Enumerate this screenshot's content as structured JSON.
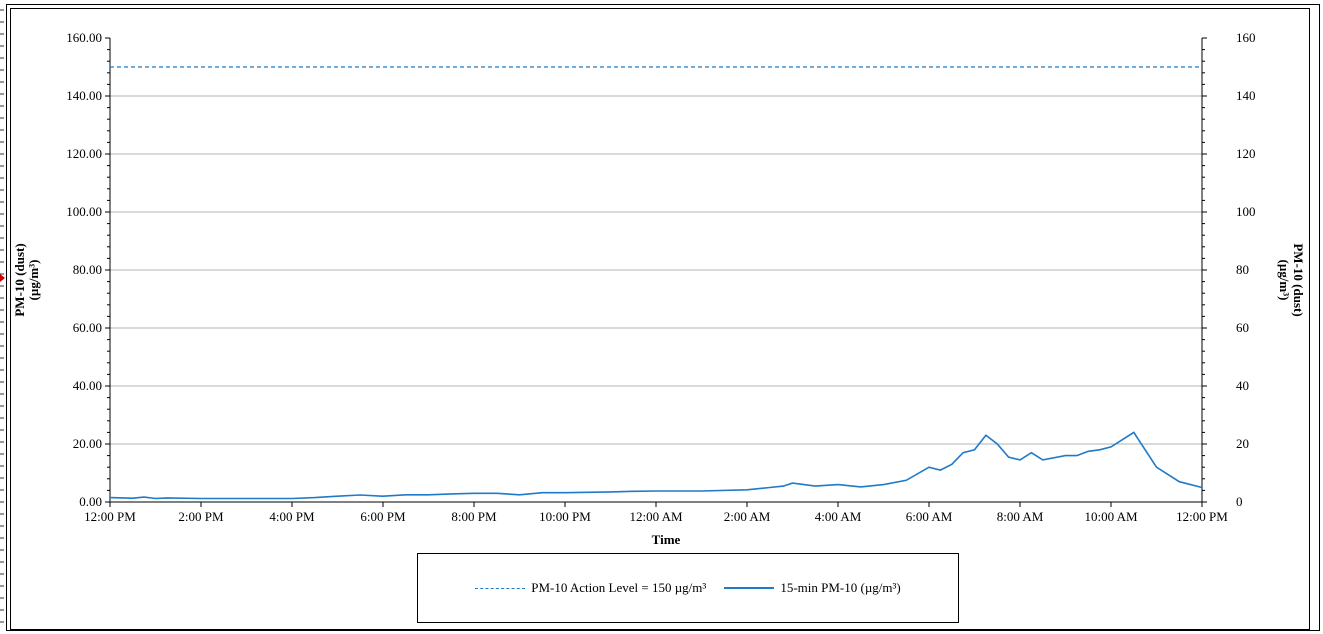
{
  "chart_data": {
    "type": "line",
    "xlabel": "Time",
    "ylabel_left": [
      "PM-10 (dust)",
      "(µg/m³)"
    ],
    "ylabel_right": [
      "PM-10 (dust)",
      "(µg/m³)"
    ],
    "x_ticks": [
      "12:00 PM",
      "2:00 PM",
      "4:00 PM",
      "6:00 PM",
      "8:00 PM",
      "10:00 PM",
      "12:00 AM",
      "2:00 AM",
      "4:00 AM",
      "6:00 AM",
      "8:00 AM",
      "10:00 AM",
      "12:00 PM"
    ],
    "x_range_hours": [
      0,
      24
    ],
    "y_left_ticks": [
      "0.00",
      "20.00",
      "40.00",
      "60.00",
      "80.00",
      "100.00",
      "120.00",
      "140.00",
      "160.00"
    ],
    "y_right_ticks": [
      "0",
      "20",
      "40",
      "60",
      "80",
      "100",
      "120",
      "140",
      "160"
    ],
    "ylim": [
      0,
      160
    ],
    "grid": "horizontal",
    "series": [
      {
        "name": "PM-10 Action Level = 150 µg/m³",
        "style": "dashed",
        "color": "#1f7ac8",
        "x": [
          0,
          24
        ],
        "values": [
          150,
          150
        ]
      },
      {
        "name": "15-min PM-10 (µg/m³)",
        "style": "solid",
        "color": "#1f7ac8",
        "x": [
          0,
          0.5,
          0.75,
          1.0,
          1.25,
          2,
          3,
          4,
          4.5,
          5,
          5.5,
          6,
          6.5,
          7,
          7.5,
          8,
          8.5,
          9,
          9.5,
          10,
          11,
          11.5,
          12,
          13,
          14,
          14.5,
          14.8,
          15,
          15.25,
          15.5,
          16,
          16.5,
          17,
          17.5,
          18,
          18.25,
          18.5,
          18.75,
          19,
          19.25,
          19.5,
          19.75,
          20,
          20.25,
          20.5,
          21,
          21.25,
          21.5,
          21.75,
          22,
          22.5,
          23,
          23.5,
          24
        ],
        "values": [
          1.5,
          1.3,
          1.7,
          1.2,
          1.4,
          1.2,
          1.2,
          1.2,
          1.5,
          2.0,
          2.4,
          2.0,
          2.5,
          2.5,
          2.8,
          3.0,
          3.0,
          2.5,
          3.2,
          3.2,
          3.5,
          3.7,
          3.8,
          3.8,
          4.2,
          5.0,
          5.5,
          6.5,
          6.0,
          5.5,
          6.0,
          5.2,
          6.0,
          7.5,
          12.0,
          11.0,
          13.0,
          17.0,
          18.0,
          23.0,
          20.0,
          15.5,
          14.5,
          17.0,
          14.5,
          16.0,
          16.0,
          17.5,
          18.0,
          19.0,
          24.0,
          12.0,
          7.0,
          5.0
        ]
      }
    ]
  },
  "legend": {
    "items": [
      {
        "label": "PM-10 Action Level = 150 µg/m³",
        "style": "dashed"
      },
      {
        "label": "15-min PM-10 (µg/m³)",
        "style": "solid"
      }
    ]
  }
}
